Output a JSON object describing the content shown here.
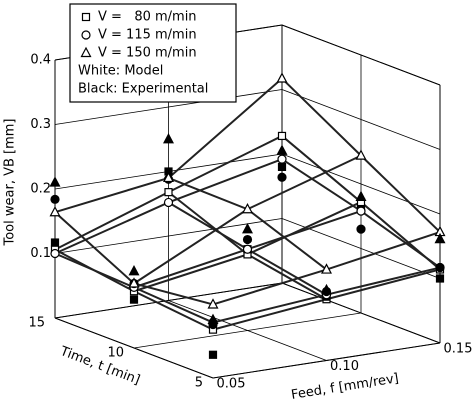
{
  "chart_data": {
    "type": "surface3d",
    "zlabel": "Tool wear, VB [mm]",
    "tlabel": "Time, t [min]",
    "xlabel": "Feed, f [mm/rev]",
    "x": [
      0.05,
      0.1,
      0.15,
      0.05,
      0.1,
      0.15,
      0.05,
      0.1,
      0.15
    ],
    "t": [
      5,
      5,
      5,
      10,
      10,
      10,
      15,
      15,
      15
    ],
    "xlim": [
      0.05,
      0.15
    ],
    "tlim": [
      5,
      15
    ],
    "zlim": [
      0,
      0.4
    ],
    "xticks": [
      0.05,
      {
        "value": 0.1,
        "label": "0.10"
      },
      0.15
    ],
    "tticks": [
      5,
      10,
      15
    ],
    "zticks": [
      0.1,
      0.2,
      0.3,
      0.4
    ],
    "legend_notes": [
      "White: Model",
      "Black: Experimental"
    ],
    "series": [
      {
        "name": "V =   80 m/min",
        "marker": "square",
        "model": [
          0.075,
          0.095,
          0.114,
          0.088,
          0.118,
          0.172,
          0.106,
          0.168,
          0.228
        ],
        "experimental": [
          0.036,
          0.099,
          0.1,
          0.075,
          0.126,
          0.161,
          0.117,
          0.2,
          0.18
        ]
      },
      {
        "name": "V = 115 m/min",
        "marker": "circle",
        "model": [
          0.086,
          0.102,
          0.117,
          0.094,
          0.126,
          0.158,
          0.1,
          0.152,
          0.192
        ],
        "experimental": [
          0.083,
          0.107,
          0.117,
          0.1,
          0.141,
          0.13,
          0.184,
          0.188,
          0.164
        ]
      },
      {
        "name": "V = 150 m/min",
        "marker": "triangle",
        "model": [
          0.114,
          0.141,
          0.172,
          0.1,
          0.188,
          0.244,
          0.164,
          0.19,
          0.317
        ],
        "experimental": [
          0.09,
          0.109,
          0.161,
          0.119,
          0.157,
          0.18,
          0.21,
          0.25,
          0.205
        ]
      }
    ]
  }
}
